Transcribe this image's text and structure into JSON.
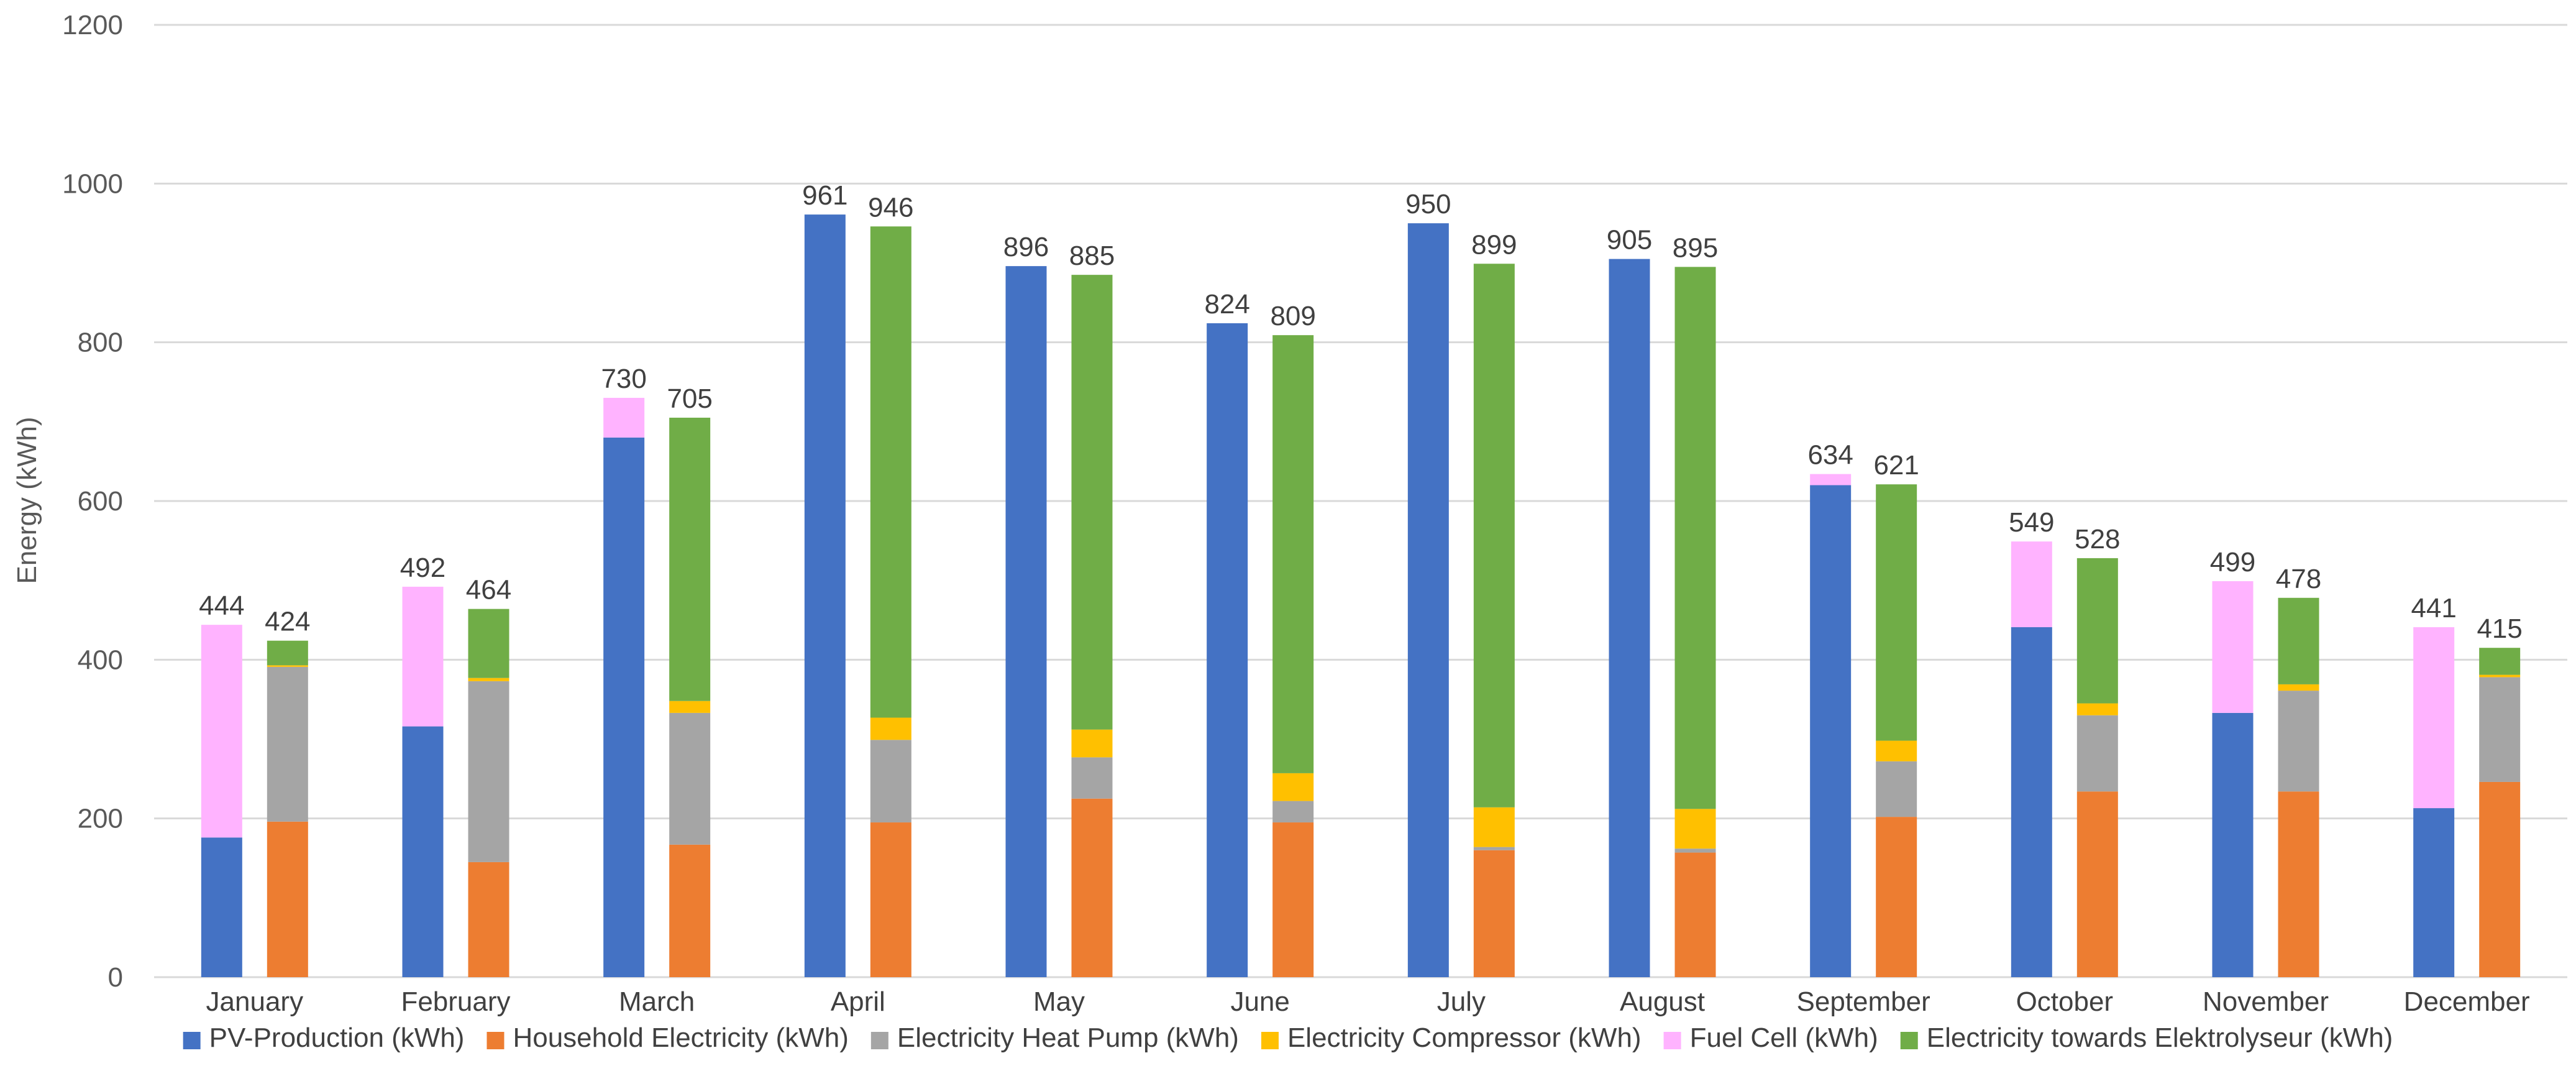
{
  "chart_data": {
    "type": "bar",
    "stacked": true,
    "title": "",
    "xlabel": "",
    "ylabel": "Energy (kWh)",
    "ylim": [
      0,
      1200
    ],
    "yticks": [
      0,
      200,
      400,
      600,
      800,
      1000,
      1200
    ],
    "grid": true,
    "legend_position": "bottom",
    "categories": [
      "January",
      "February",
      "March",
      "April",
      "May",
      "June",
      "July",
      "August",
      "September",
      "October",
      "November",
      "December"
    ],
    "series": [
      {
        "name": "PV-Production (kWh)",
        "color": "#4472C4",
        "stack": "supply",
        "values": [
          176,
          316,
          680,
          961,
          896,
          824,
          950,
          905,
          620,
          441,
          333,
          213
        ]
      },
      {
        "name": "Household Electricity (kWh)",
        "color": "#ED7D31",
        "stack": "demand",
        "values": [
          196,
          145,
          167,
          195,
          225,
          195,
          160,
          157,
          202,
          234,
          234,
          246
        ]
      },
      {
        "name": "Electricity Heat Pump (kWh)",
        "color": "#A5A5A5",
        "stack": "demand",
        "values": [
          195,
          228,
          166,
          104,
          52,
          27,
          4,
          5,
          70,
          96,
          127,
          132
        ]
      },
      {
        "name": "Electricity Compressor (kWh)",
        "color": "#FFC000",
        "stack": "demand",
        "values": [
          2,
          4,
          15,
          28,
          35,
          35,
          50,
          50,
          26,
          15,
          8,
          3
        ]
      },
      {
        "name": "Fuel Cell (kWh)",
        "color": "#FFB3FF",
        "stack": "supply",
        "values": [
          268,
          176,
          50,
          0,
          0,
          0,
          0,
          0,
          14,
          108,
          166,
          228
        ]
      },
      {
        "name": "Electricity towards Elektrolyseur (kWh)",
        "color": "#70AD47",
        "stack": "demand",
        "values": [
          31,
          87,
          357,
          619,
          573,
          552,
          685,
          683,
          323,
          183,
          109,
          34
        ]
      }
    ],
    "totals": {
      "supply": [
        444,
        492,
        730,
        961,
        896,
        824,
        950,
        905,
        634,
        549,
        499,
        441
      ],
      "demand": [
        424,
        464,
        705,
        946,
        885,
        809,
        899,
        895,
        621,
        528,
        478,
        415
      ]
    }
  },
  "colors": {
    "gridline": "#D9D9D9",
    "axis_text": "#595959",
    "background": "#FFFFFF"
  }
}
